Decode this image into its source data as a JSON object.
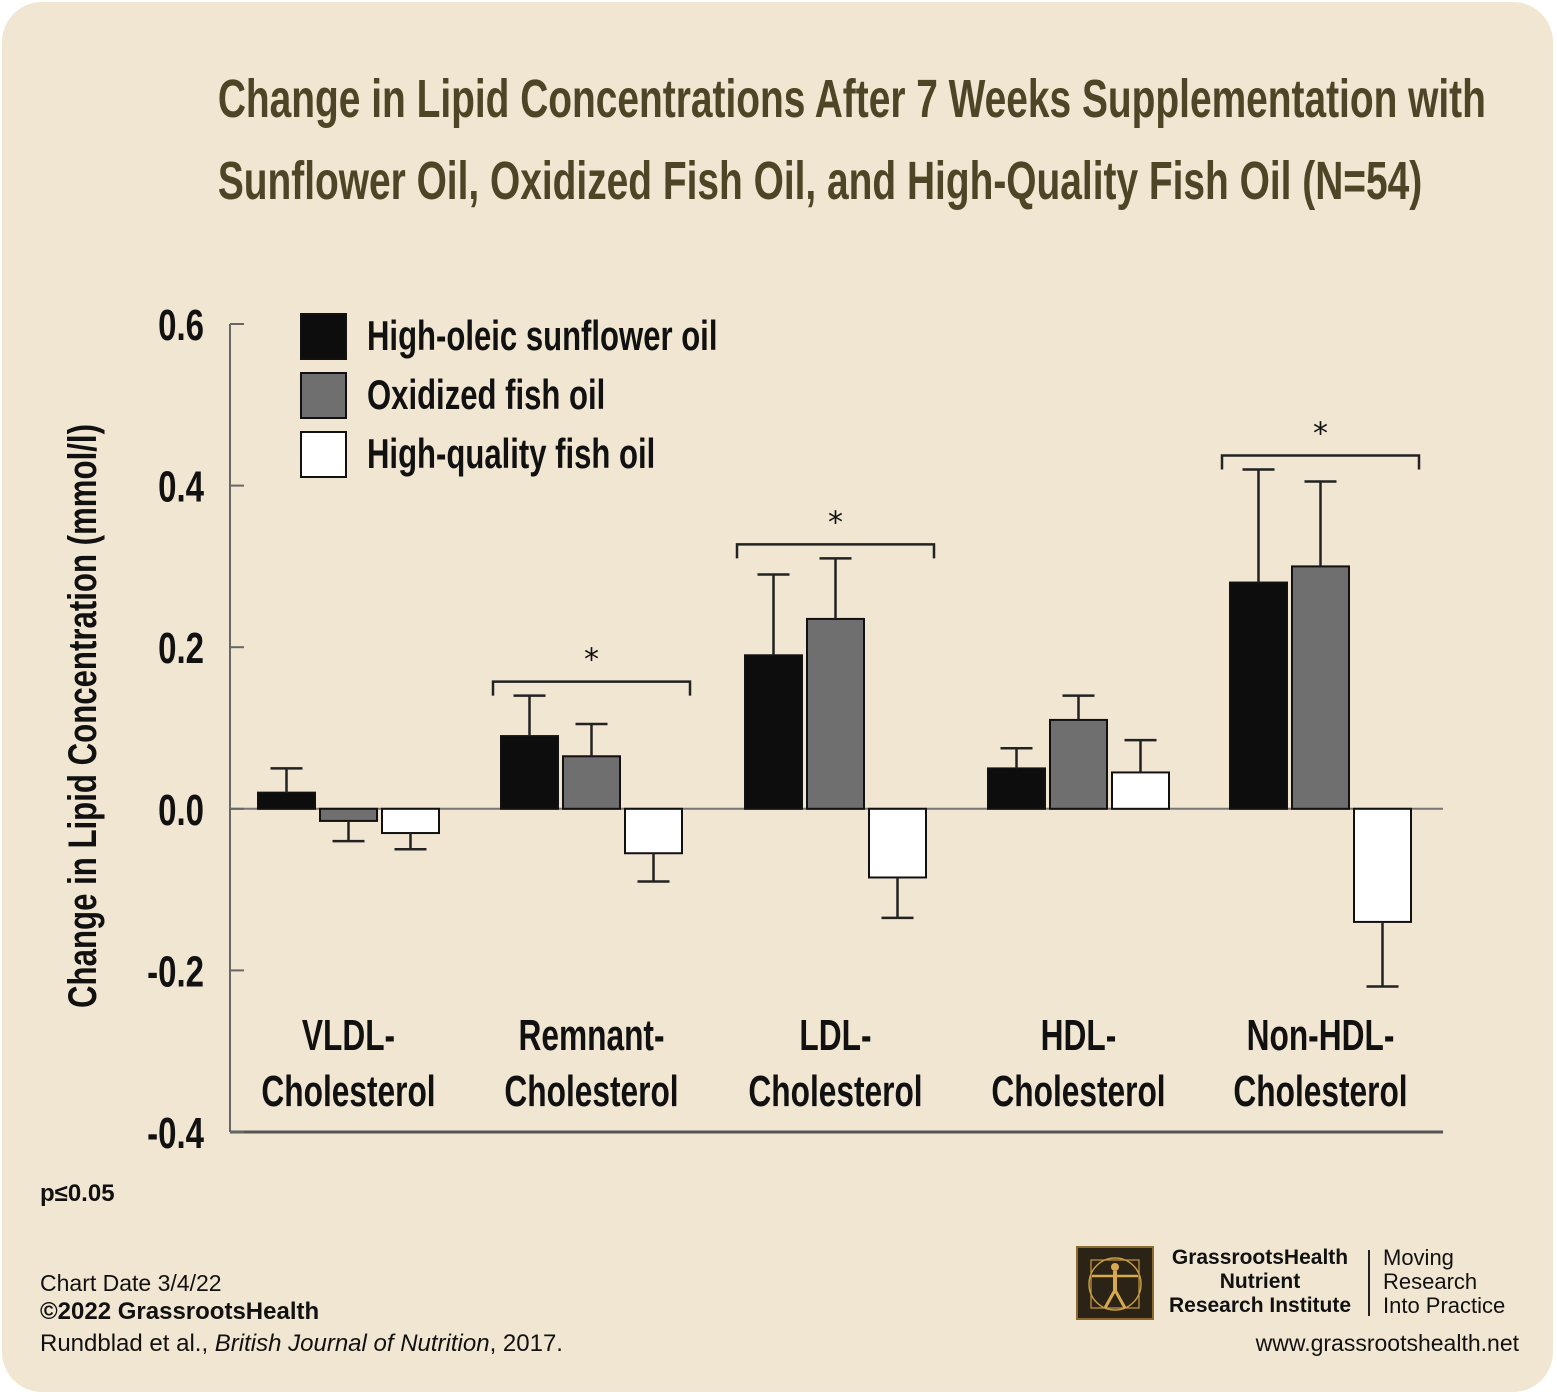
{
  "title": {
    "line1": "Change in Lipid Concentrations After 7 Weeks Supplementation with",
    "line2": "Sunflower Oil, Oxidized Fish Oil, and High-Quality Fish Oil (N=54)"
  },
  "chart_data": {
    "type": "bar",
    "ylabel": "Change in Lipid Concentration (mmol/l)",
    "xlabel": "",
    "ylim": [
      -0.4,
      0.6
    ],
    "yticks": [
      "0.6",
      "0.4",
      "0.2",
      "0.0",
      "-0.2",
      "-0.4"
    ],
    "ytick_values": [
      0.6,
      0.4,
      0.2,
      0.0,
      -0.2,
      -0.4
    ],
    "categories": [
      [
        "VLDL-",
        "Cholesterol"
      ],
      [
        "Remnant-",
        "Cholesterol"
      ],
      [
        "LDL-",
        "Cholesterol"
      ],
      [
        "HDL-",
        "Cholesterol"
      ],
      [
        "Non-HDL-",
        "Cholesterol"
      ]
    ],
    "series": [
      {
        "name": "High-oleic sunflower oil",
        "color": "#0d0d0d",
        "values": [
          0.02,
          0.09,
          0.19,
          0.05,
          0.28
        ],
        "error": [
          0.03,
          0.05,
          0.1,
          0.025,
          0.14
        ]
      },
      {
        "name": "Oxidized fish oil",
        "color": "#6f6f6f",
        "values": [
          -0.015,
          0.065,
          0.235,
          0.11,
          0.3
        ],
        "error": [
          0.025,
          0.04,
          0.075,
          0.03,
          0.105
        ]
      },
      {
        "name": "High-quality fish oil",
        "color": "#ffffff",
        "values": [
          -0.03,
          -0.055,
          -0.085,
          0.045,
          -0.14
        ],
        "error": [
          0.02,
          0.035,
          0.05,
          0.04,
          0.08
        ]
      }
    ],
    "significance": [
      {
        "category": 1,
        "label": "*"
      },
      {
        "category": 2,
        "label": "*"
      },
      {
        "category": 4,
        "label": "*"
      }
    ],
    "legend_position": "top-left",
    "grid": false
  },
  "footnote": "p≤0.05",
  "chart_date": "Chart Date 3/4/22",
  "copyright": "©2022 GrassrootsHealth",
  "citation": {
    "authors": "Rundblad et al., ",
    "journal": "British Journal of Nutrition",
    "year": ", 2017."
  },
  "logo": {
    "name_line1": "GrassrootsHealth",
    "name_line2": "Nutrient",
    "name_line3": "Research Institute",
    "tagline1": "Moving",
    "tagline2": "Research",
    "tagline3": "Into Practice"
  },
  "website": "www.grassrootshealth.net"
}
